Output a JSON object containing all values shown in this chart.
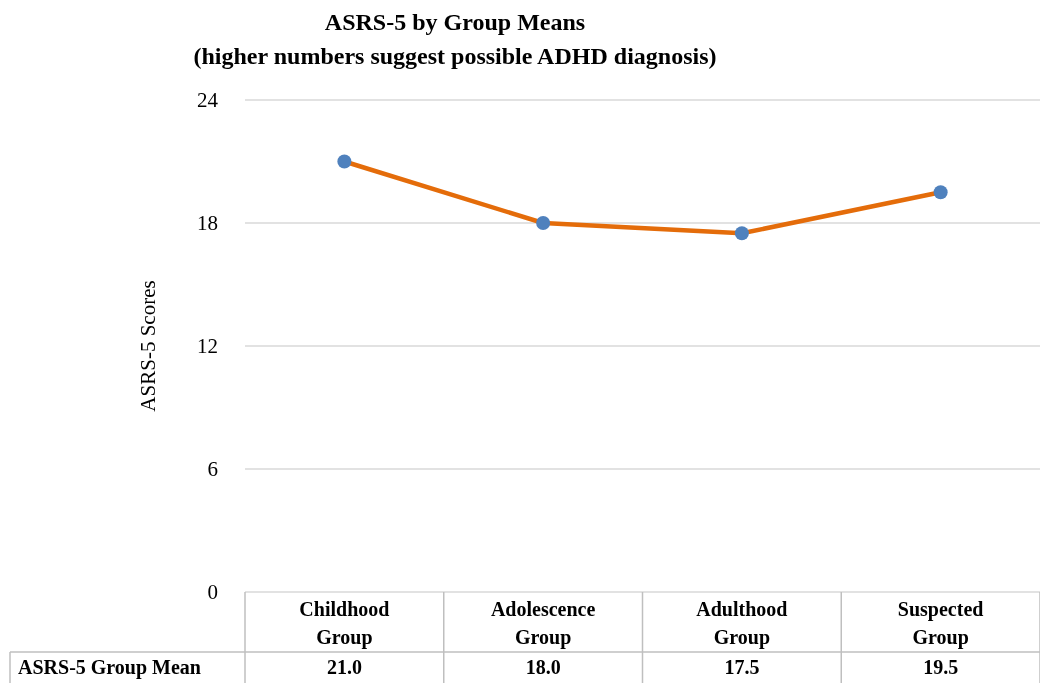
{
  "chart_data": {
    "type": "line",
    "title": "ASRS-5 by Group Means",
    "subtitle": "(higher numbers suggest possible ADHD diagnosis)",
    "ylabel": "ASRS-5 Scores",
    "categories": [
      "Childhood Group",
      "Adolescence Group",
      "Adulthood Group",
      "Suspected Group"
    ],
    "series": [
      {
        "name": "ASRS-5 Group Mean",
        "color": "#e46c0a",
        "colors": [
          "#4f81bd",
          "#4f81bd",
          "#4f81bd",
          "#4f81bd"
        ],
        "values": [
          21.0,
          18.0,
          17.5,
          19.5
        ],
        "value_labels": [
          "21.0",
          "18.0",
          "17.5",
          "19.5"
        ]
      }
    ],
    "ylim": [
      0,
      24
    ],
    "yticks": [
      0,
      6,
      12,
      18,
      24
    ],
    "grid": "y",
    "marker": "circle",
    "line_style": "solid"
  }
}
